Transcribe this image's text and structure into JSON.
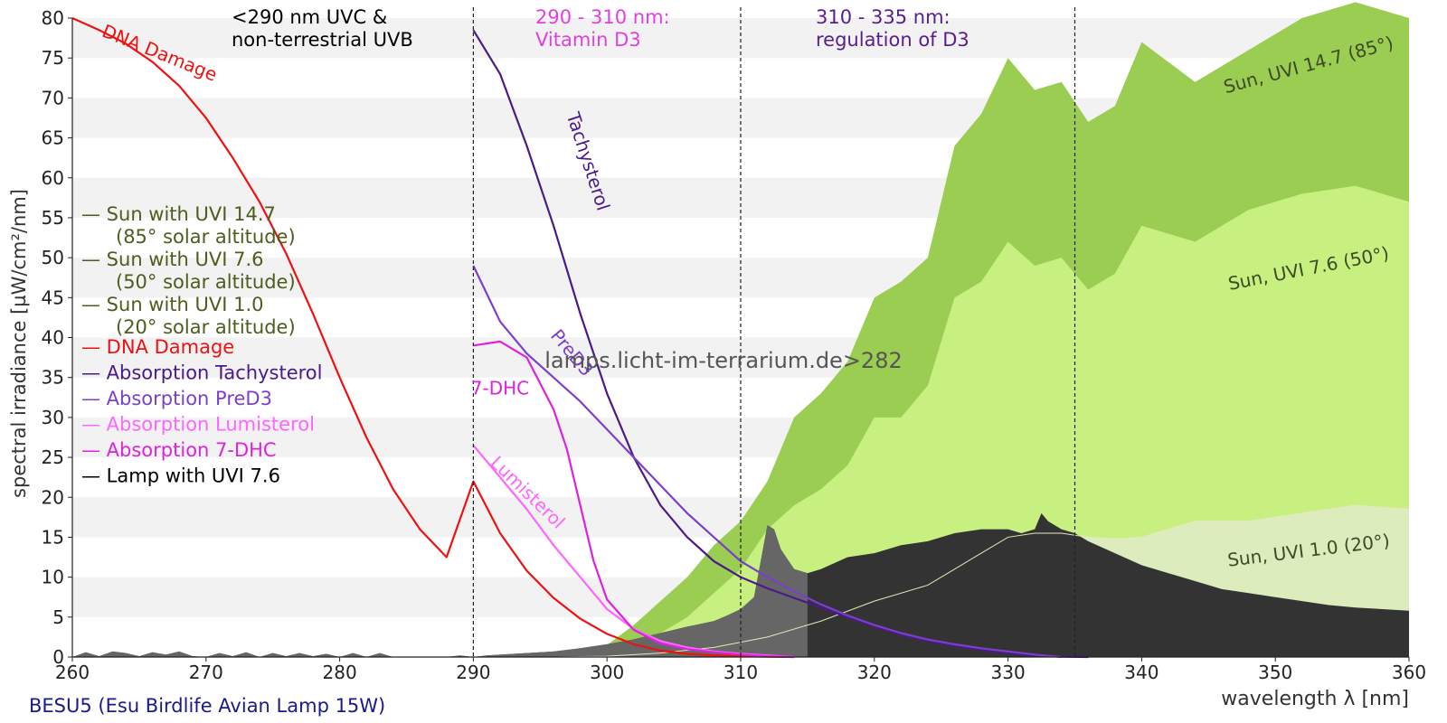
{
  "chart_data": {
    "type": "area",
    "xlabel": "wavelength λ [nm]",
    "ylabel": "spectral irradiance [µW/cm²/nm]",
    "xlim": [
      260,
      360
    ],
    "ylim": [
      0,
      80
    ],
    "x_ticks": [
      260,
      270,
      280,
      290,
      300,
      310,
      320,
      330,
      340,
      350,
      360
    ],
    "y_ticks": [
      0,
      5,
      10,
      15,
      20,
      25,
      30,
      35,
      40,
      45,
      50,
      55,
      60,
      65,
      70,
      75,
      80
    ],
    "grid": "horizontal alternating bands",
    "legend_position": "left",
    "lamp_name": "BESU5 (Esu Birdlife Avian Lamp 15W)",
    "watermark": "lamps.licht-im-terrarium.de>282",
    "regions": [
      {
        "line1": "<290 nm UVC &",
        "line2": "non-terrestrial UVB",
        "color": "#000000"
      },
      {
        "line1": "290 - 310 nm:",
        "line2": "Vitamin D3",
        "color": "#e040e0"
      },
      {
        "line1": "310 - 335 nm:",
        "line2": "regulation of D3",
        "color": "#5a1e8c"
      }
    ],
    "region_boundaries": [
      290,
      310,
      335
    ],
    "legend": [
      {
        "line1": "— Sun with UVI 14.7",
        "line2": "(85° solar altitude)",
        "color": "#4b5e1e"
      },
      {
        "line1": "— Sun with UVI 7.6",
        "line2": "(50° solar altitude)",
        "color": "#4b5e1e"
      },
      {
        "line1": "— Sun with UVI 1.0",
        "line2": "(20° solar altitude)",
        "color": "#4b5e1e"
      },
      {
        "line1": "— DNA Damage",
        "color": "#ee1111"
      },
      {
        "line1": "— Absorption Tachysterol",
        "color": "#4b1a8a"
      },
      {
        "line1": "— Absorption PreD3",
        "color": "#7b3fc9"
      },
      {
        "line1": "— Absorption Lumisterol",
        "color": "#ff66ff"
      },
      {
        "line1": "— Absorption 7-DHC",
        "color": "#dd22dd"
      },
      {
        "line1": "— Lamp with UVI 7.6",
        "color": "#000000"
      }
    ],
    "series": [
      {
        "name": "Sun, UVI 14.7 (85°)",
        "kind": "area",
        "color": "#9acd52",
        "x": [
          296,
          298,
          300,
          302,
          304,
          306,
          308,
          310,
          312,
          314,
          316,
          318,
          320,
          322,
          324,
          326,
          328,
          330,
          332,
          334,
          336,
          338,
          340,
          344,
          348,
          352,
          356,
          360
        ],
        "y": [
          0,
          0.6,
          1.5,
          4,
          7,
          10,
          14,
          17,
          22,
          30,
          33,
          37,
          45,
          47,
          50,
          64,
          68,
          75,
          71,
          72,
          67,
          69,
          77,
          72,
          76,
          80,
          82,
          80
        ]
      },
      {
        "name": "Sun, UVI 7.6 (50°)",
        "kind": "area",
        "color": "#c8f080",
        "x": [
          296,
          298,
          300,
          302,
          304,
          306,
          308,
          310,
          312,
          314,
          316,
          318,
          320,
          322,
          324,
          326,
          328,
          330,
          332,
          334,
          336,
          338,
          340,
          344,
          348,
          352,
          356,
          360
        ],
        "y": [
          0,
          0.3,
          0.8,
          1.8,
          3,
          5,
          8,
          11,
          16,
          19,
          21,
          24,
          30,
          30,
          34,
          45,
          47,
          52,
          49,
          50,
          46,
          48,
          54,
          52,
          56,
          58,
          59,
          57
        ]
      },
      {
        "name": "Sun, UVI 1.0 (20°)",
        "kind": "area",
        "color": "#dcecbc",
        "x": [
          296,
          300,
          304,
          308,
          312,
          316,
          320,
          324,
          328,
          330,
          332,
          334,
          336,
          338,
          340,
          344,
          348,
          352,
          356,
          360
        ],
        "y": [
          0,
          0.1,
          0.5,
          1.2,
          2.5,
          4.5,
          7,
          9,
          13,
          15,
          15.5,
          15.5,
          15,
          14.8,
          15,
          17,
          17,
          18,
          19,
          18.5
        ]
      },
      {
        "name": "Lamp with UVI 7.6",
        "kind": "area",
        "color": "#333333",
        "dim_below_x": 315,
        "dim_color": "#666666",
        "x": [
          260,
          261,
          262,
          263,
          264,
          265,
          266,
          267,
          268,
          269,
          270,
          271,
          272,
          273,
          274,
          275,
          276,
          277,
          278,
          279,
          280,
          281,
          282,
          283,
          284,
          285,
          286,
          287,
          288,
          289,
          290,
          291,
          292,
          293,
          294,
          295,
          296,
          298,
          300,
          302,
          304,
          306,
          308,
          309,
          310,
          311,
          311.5,
          312,
          312.5,
          313,
          314,
          315,
          316,
          318,
          320,
          322,
          324,
          326,
          328,
          330,
          331,
          332,
          332.5,
          333,
          334,
          335,
          336,
          338,
          340,
          342,
          344,
          346,
          348,
          350,
          352,
          354,
          356,
          358,
          360
        ],
        "y": [
          0,
          0.6,
          0.1,
          0.7,
          0.5,
          0.1,
          0.6,
          0.3,
          0.7,
          0.1,
          0,
          0.5,
          0.1,
          0.6,
          0,
          0.5,
          0.1,
          0.5,
          0.1,
          0.4,
          0,
          0.5,
          0,
          0.5,
          0,
          0,
          0,
          0,
          0,
          0.2,
          0,
          0.2,
          0.3,
          0.4,
          0.5,
          0.6,
          0.7,
          1.1,
          1.6,
          2.2,
          3,
          3.8,
          4.5,
          5.2,
          6,
          7.5,
          12,
          16.5,
          16,
          13.5,
          11,
          10.5,
          11,
          12.5,
          13,
          14,
          14.5,
          15.5,
          16,
          16,
          15.5,
          16,
          18,
          17,
          16,
          15.5,
          14.5,
          13,
          11.5,
          10.5,
          9.5,
          8.5,
          8,
          7.5,
          7,
          6.5,
          6.2,
          6,
          5.8
        ]
      },
      {
        "name": "DNA Damage",
        "kind": "line",
        "color": "#ee1111",
        "x": [
          260,
          262,
          264,
          266,
          268,
          270,
          272,
          274,
          276,
          278,
          280,
          282,
          284,
          286,
          288,
          290,
          292,
          294,
          296,
          298,
          300,
          302,
          304,
          306,
          308,
          310,
          312,
          314
        ],
        "y": [
          80,
          78.5,
          76.8,
          74.5,
          71.5,
          67.5,
          62.5,
          57,
          50.5,
          43,
          35,
          27.5,
          21,
          16,
          12.5,
          22,
          15.5,
          10.8,
          7.4,
          4.8,
          2.9,
          1.6,
          0.8,
          0.4,
          0.2,
          0.1,
          0.05,
          0
        ]
      },
      {
        "name": "Absorption Tachysterol",
        "kind": "line",
        "color": "#4b1a8a",
        "x": [
          290,
          292,
          294,
          296,
          298,
          300,
          302,
          304,
          306,
          308,
          310,
          312,
          314,
          316,
          318,
          320,
          322,
          324,
          326,
          328,
          330,
          332,
          334,
          336
        ],
        "y": [
          78.5,
          73,
          64,
          54,
          43,
          33,
          25,
          19,
          15,
          12,
          10,
          8.6,
          7.4,
          6.2,
          5,
          3.8,
          2.8,
          2,
          1.4,
          0.9,
          0.5,
          0.2,
          0.05,
          0
        ]
      },
      {
        "name": "Absorption PreD3",
        "kind": "line",
        "color": "#7b3fc9",
        "x": [
          290,
          292,
          294,
          296,
          298,
          300,
          302,
          304,
          306,
          308,
          310,
          312,
          314,
          316,
          318,
          320,
          322,
          324,
          326,
          328,
          330,
          332,
          334
        ],
        "y": [
          49,
          42,
          38,
          35,
          32,
          28.5,
          25,
          21.5,
          18,
          15,
          12,
          10,
          8.2,
          6.6,
          5.2,
          4,
          3,
          2.2,
          1.6,
          1.1,
          0.7,
          0.3,
          0
        ]
      },
      {
        "name": "Absorption Lumisterol",
        "kind": "line",
        "color": "#ff66ff",
        "x": [
          290,
          292,
          294,
          296,
          298,
          300,
          302,
          304,
          306,
          308,
          310,
          312,
          314
        ],
        "y": [
          26.5,
          22.5,
          18.5,
          14,
          10,
          6,
          3.5,
          2,
          1.2,
          0.7,
          0.4,
          0.2,
          0
        ]
      },
      {
        "name": "Absorption 7-DHC",
        "kind": "line",
        "color": "#dd22dd",
        "x": [
          290,
          292,
          294,
          296,
          297,
          298,
          299,
          300,
          302,
          304,
          306,
          308,
          310,
          312,
          314
        ],
        "y": [
          39,
          39.5,
          37.5,
          31,
          26,
          19,
          12,
          7.2,
          3.4,
          1.7,
          1,
          0.6,
          0.3,
          0.1,
          0
        ]
      }
    ],
    "curve_labels": [
      {
        "text": "DNA Damage",
        "x": 266.5,
        "y": 75.5,
        "angle": 22,
        "color": "#ee1111",
        "fontsize": 20
      },
      {
        "text": "Tachysterol",
        "x": 298.5,
        "y": 62,
        "angle": 72,
        "color": "#4b1a8a",
        "fontsize": 20
      },
      {
        "text": "PreD3",
        "x": 297.3,
        "y": 38,
        "angle": 50,
        "color": "#7b3fc9",
        "fontsize": 20
      },
      {
        "text": "7-DHC",
        "x": 292,
        "y": 33.5,
        "angle": 0,
        "color": "#dd22dd",
        "fontsize": 20
      },
      {
        "text": "Lumisterol",
        "x": 294,
        "y": 20.5,
        "angle": 44,
        "color": "#ff66ff",
        "fontsize": 20
      },
      {
        "text": "Sun, UVI 14.7 (85°)",
        "x": 352.5,
        "y": 74,
        "angle": -15,
        "color": "#3d4a25",
        "fontsize": 20
      },
      {
        "text": "Sun, UVI 7.6 (50°)",
        "x": 352.5,
        "y": 48.5,
        "angle": -11,
        "color": "#3d4a25",
        "fontsize": 20
      },
      {
        "text": "Sun, UVI 1.0 (20°)",
        "x": 352.5,
        "y": 13.2,
        "angle": -7,
        "color": "#3d4a25",
        "fontsize": 20
      }
    ]
  }
}
